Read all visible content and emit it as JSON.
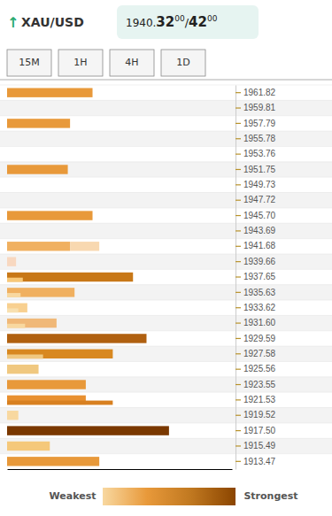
{
  "chart_data": {
    "type": "bar",
    "orientation": "horizontal",
    "annotations": [
      "↑",
      "XAU/USD",
      "1940.",
      "32",
      "00",
      "/",
      "42",
      "00",
      "15M",
      "1H",
      "4H",
      "1D"
    ],
    "categories": [
      "1961.82",
      "1959.81",
      "1957.79",
      "1955.78",
      "1953.76",
      "1951.75",
      "1949.73",
      "1947.72",
      "1945.70",
      "1943.69",
      "1941.68",
      "1939.66",
      "1937.65",
      "1935.63",
      "1933.62",
      "1931.60",
      "1929.59",
      "1927.58",
      "1925.56",
      "1923.55",
      "1921.53",
      "1919.52",
      "1917.50",
      "1915.49",
      "1913.47"
    ],
    "series": [
      {
        "values": [
          0.38,
          null,
          0.28,
          null,
          null,
          0.27,
          null,
          null,
          0.38,
          null,
          0.28,
          0.04,
          0.56,
          0.3,
          0.09,
          0.22,
          0.62,
          0.47,
          0.14,
          0.35,
          0.35,
          0.05,
          0.72,
          0.19,
          0.41
        ],
        "colors": [
          "#e8993a",
          null,
          "#e8993a",
          null,
          null,
          "#e8993a",
          null,
          null,
          "#e8993a",
          null,
          "#f0b060",
          "#f8d8c0",
          "#c87818",
          "#f0b060",
          "#f8d090",
          "#f0b878",
          "#b06010",
          "#d88820",
          "#f0c880",
          "#e8993a",
          "#e89030",
          "#f8d8a0",
          "#7a3800",
          "#f5c87a",
          "#e8993a"
        ]
      },
      {
        "values": [
          null,
          null,
          null,
          null,
          null,
          null,
          null,
          null,
          null,
          null,
          0.13,
          null,
          null,
          null,
          null,
          null,
          null,
          null,
          null,
          null,
          null,
          null,
          null,
          null,
          null
        ],
        "color": "#f8d8b0",
        "stacked": true
      },
      {
        "values": [
          null,
          null,
          null,
          null,
          null,
          null,
          null,
          null,
          null,
          null,
          null,
          null,
          0.07,
          0.06,
          0.05,
          0.08,
          null,
          0.16,
          null,
          null,
          0.47,
          null,
          null,
          null,
          null
        ],
        "colors": [
          null,
          null,
          null,
          null,
          null,
          null,
          null,
          null,
          null,
          null,
          null,
          null,
          "#f8c878",
          "#f8d8a0",
          "#f8e0b0",
          "#f8d8a0",
          null,
          "#f0c880",
          null,
          null,
          "#d88020",
          null,
          null,
          null,
          null
        ]
      }
    ],
    "xlim": [
      0,
      1
    ],
    "tick_labels": "y",
    "colorbar": {
      "colors": [
        "#f8d8a0",
        "#e8993a",
        "#c07820",
        "#8b4500"
      ],
      "labels": [
        "Weakest",
        "Strongest"
      ]
    }
  }
}
